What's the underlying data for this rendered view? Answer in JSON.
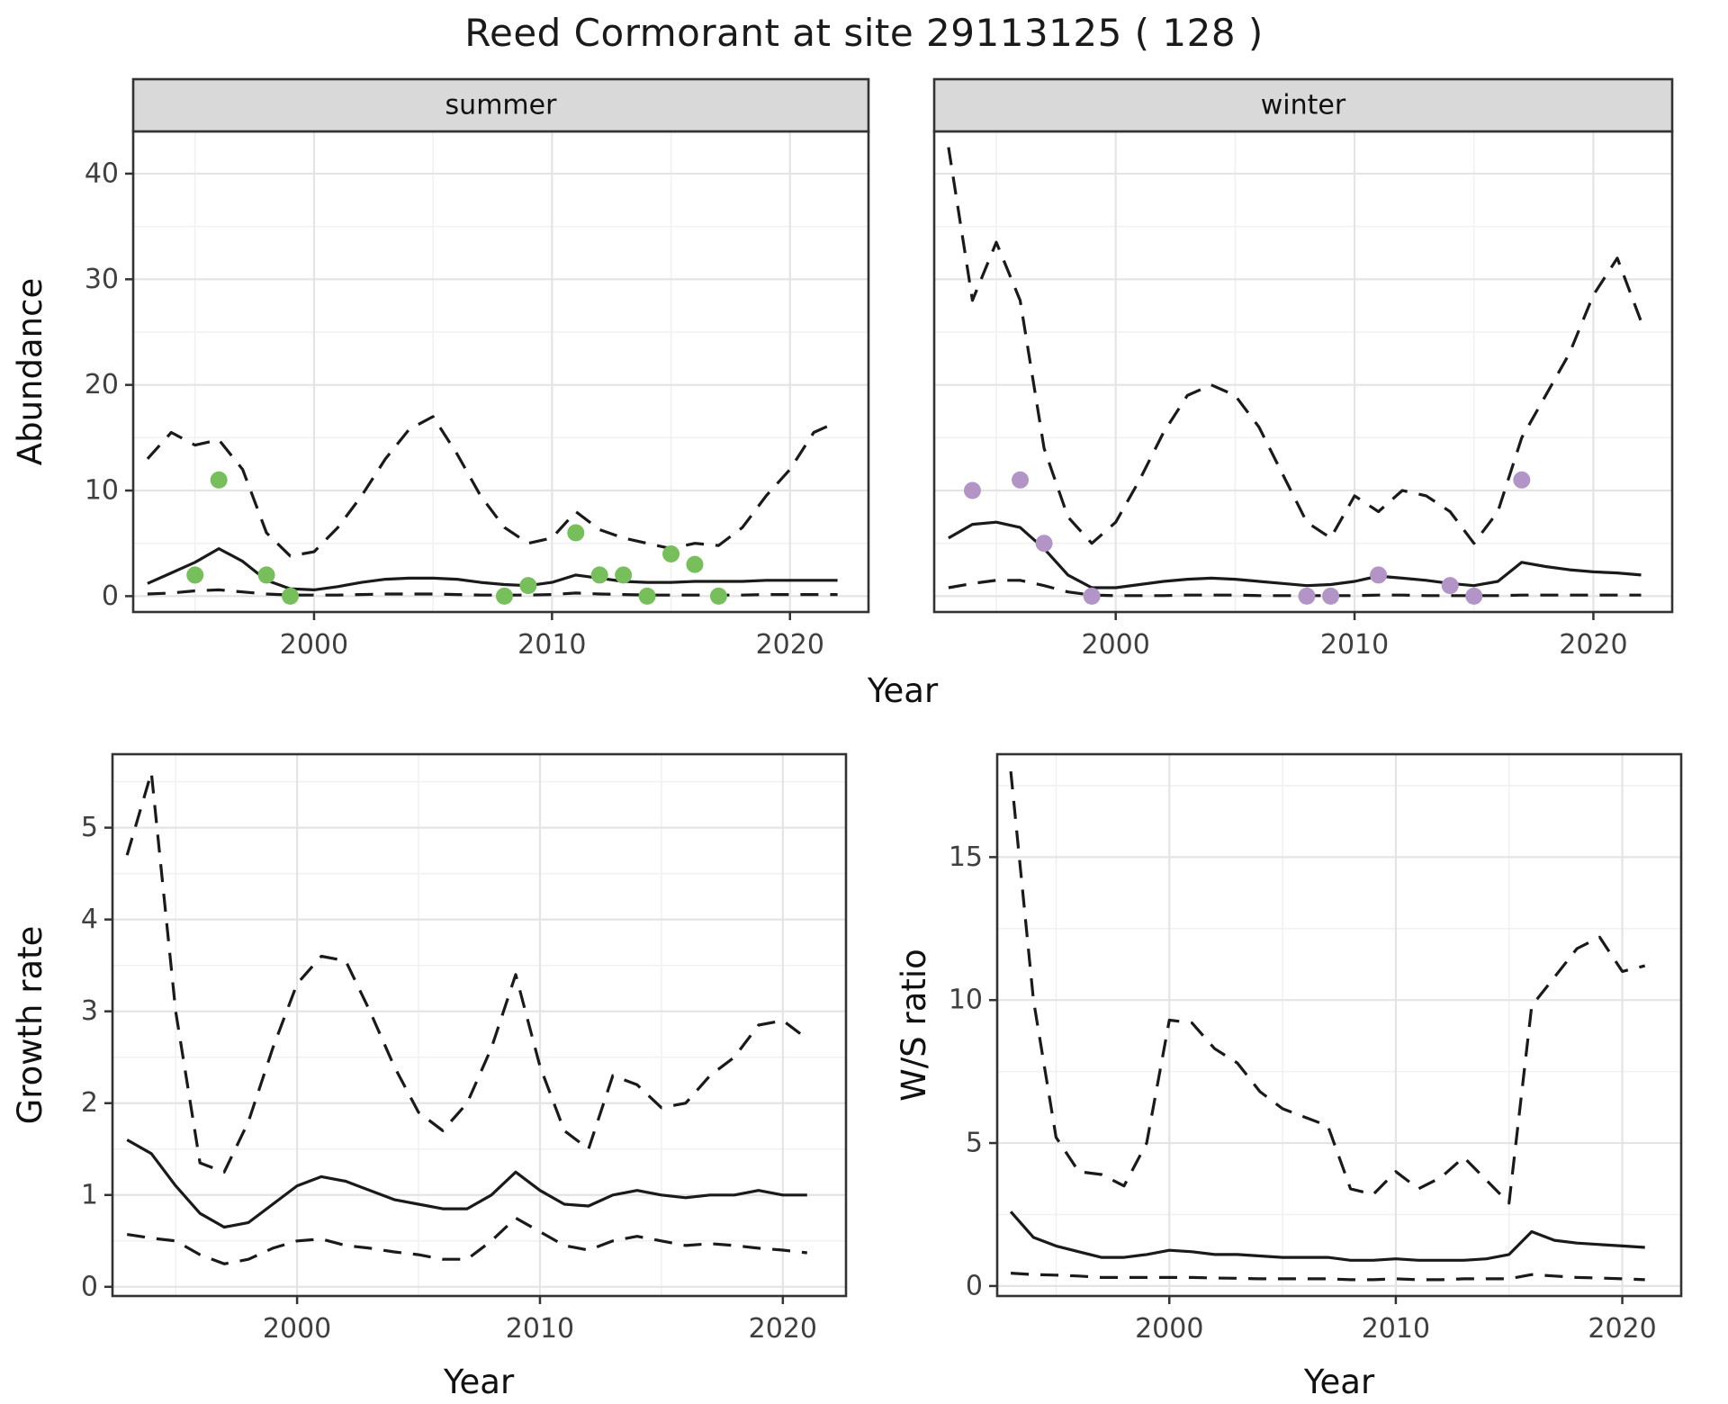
{
  "title": "Reed Cormorant at site 29113125 ( 128 )",
  "colors": {
    "summer_points": "#76bf5b",
    "winter_points": "#b294c7",
    "line": "#1a1a1a",
    "strip_fill": "#d9d9d9",
    "strip_border": "#333333",
    "panel_border": "#333333",
    "grid_major": "#e4e4e4",
    "grid_minor": "#f1f1f1",
    "tick_text": "#404040",
    "axis_title": "#111111"
  },
  "chart_data": [
    {
      "type": "line",
      "id": "abundance-summer",
      "strip_label": "summer",
      "xlabel": "Year",
      "ylabel": "Abundance",
      "xlim": [
        1992.4,
        2023.3
      ],
      "ylim": [
        -1.5,
        44
      ],
      "xticks": [
        2000,
        2010,
        2020
      ],
      "xticks_minor": [
        1995,
        2005,
        2015
      ],
      "yticks": [
        0,
        10,
        20,
        30,
        40
      ],
      "yticks_minor": [
        5,
        15,
        25,
        35
      ],
      "x": [
        1993,
        1994,
        1995,
        1996,
        1997,
        1998,
        1999,
        2000,
        2001,
        2002,
        2003,
        2004,
        2005,
        2006,
        2007,
        2008,
        2009,
        2010,
        2011,
        2012,
        2013,
        2014,
        2015,
        2016,
        2017,
        2018,
        2019,
        2020,
        2021,
        2022
      ],
      "series": [
        {
          "name": "upper-ci",
          "style": "dashed",
          "values": [
            13,
            15.5,
            14.3,
            14.8,
            12,
            6,
            3.8,
            4.2,
            6.5,
            9.5,
            13,
            15.8,
            17,
            13.5,
            9.5,
            6.5,
            5,
            5.5,
            8,
            6.3,
            5.5,
            5,
            4.5,
            5,
            4.8,
            6.5,
            9.5,
            12,
            15.5,
            16.5
          ]
        },
        {
          "name": "lower-ci",
          "style": "dashed",
          "values": [
            0.2,
            0.3,
            0.5,
            0.6,
            0.4,
            0.2,
            0.1,
            0.1,
            0.1,
            0.15,
            0.2,
            0.2,
            0.2,
            0.15,
            0.1,
            0.1,
            0.1,
            0.15,
            0.3,
            0.2,
            0.15,
            0.1,
            0.1,
            0.1,
            0.1,
            0.1,
            0.15,
            0.15,
            0.15,
            0.15
          ]
        },
        {
          "name": "estimate",
          "style": "solid",
          "values": [
            1.2,
            2.2,
            3.2,
            4.5,
            3.3,
            1.5,
            0.7,
            0.6,
            0.9,
            1.3,
            1.6,
            1.7,
            1.7,
            1.6,
            1.3,
            1.1,
            1.0,
            1.3,
            2.0,
            1.7,
            1.4,
            1.3,
            1.3,
            1.4,
            1.4,
            1.4,
            1.5,
            1.5,
            1.5,
            1.5
          ]
        }
      ],
      "observations": {
        "color_key": "summer_points",
        "x": [
          1995,
          1996,
          1998,
          1999,
          2008,
          2009,
          2011,
          2012,
          2013,
          2014,
          2015,
          2016,
          2017
        ],
        "y": [
          2,
          11,
          2,
          0,
          0,
          1,
          6,
          2,
          2,
          0,
          4,
          3,
          0
        ]
      }
    },
    {
      "type": "line",
      "id": "abundance-winter",
      "strip_label": "winter",
      "xlabel": "Year",
      "ylabel": null,
      "xlim": [
        1992.4,
        2023.3
      ],
      "ylim": [
        -1.5,
        44
      ],
      "xticks": [
        2000,
        2010,
        2020
      ],
      "xticks_minor": [
        1995,
        2005,
        2015
      ],
      "yticks": [
        0,
        10,
        20,
        30,
        40
      ],
      "yticks_minor": [
        5,
        15,
        25,
        35
      ],
      "x": [
        1993,
        1994,
        1995,
        1996,
        1997,
        1998,
        1999,
        2000,
        2001,
        2002,
        2003,
        2004,
        2005,
        2006,
        2007,
        2008,
        2009,
        2010,
        2011,
        2012,
        2013,
        2014,
        2015,
        2016,
        2017,
        2018,
        2019,
        2020,
        2021,
        2022
      ],
      "series": [
        {
          "name": "upper-ci",
          "style": "dashed",
          "values": [
            42.5,
            28,
            33.5,
            28,
            14,
            7.5,
            5,
            7,
            11,
            15.5,
            19,
            20,
            19,
            16,
            11.5,
            7,
            5.5,
            9.5,
            8,
            10,
            9.5,
            8,
            5,
            8,
            15,
            19,
            23,
            28.5,
            32,
            26
          ]
        },
        {
          "name": "lower-ci",
          "style": "dashed",
          "values": [
            0.8,
            1.2,
            1.5,
            1.5,
            1.0,
            0.4,
            0.1,
            0.05,
            0.05,
            0.05,
            0.1,
            0.1,
            0.1,
            0.05,
            0.05,
            0.05,
            0.05,
            0.05,
            0.1,
            0.1,
            0.05,
            0.05,
            0.05,
            0.05,
            0.1,
            0.1,
            0.1,
            0.1,
            0.1,
            0.1
          ]
        },
        {
          "name": "estimate",
          "style": "solid",
          "values": [
            5.5,
            6.8,
            7.0,
            6.5,
            4.5,
            2.0,
            0.8,
            0.8,
            1.1,
            1.4,
            1.6,
            1.7,
            1.6,
            1.4,
            1.2,
            1.0,
            1.1,
            1.4,
            1.9,
            1.7,
            1.5,
            1.2,
            1.0,
            1.4,
            3.2,
            2.8,
            2.5,
            2.3,
            2.2,
            2.0
          ]
        }
      ],
      "observations": {
        "color_key": "winter_points",
        "x": [
          1994,
          1996,
          1997,
          1999,
          2008,
          2009,
          2011,
          2014,
          2015,
          2017
        ],
        "y": [
          10,
          11,
          5,
          0,
          0,
          0,
          2,
          1,
          0,
          11
        ]
      }
    },
    {
      "type": "line",
      "id": "growth-rate",
      "strip_label": null,
      "xlabel": "Year",
      "ylabel": "Growth rate",
      "xlim": [
        1992.4,
        2022.6
      ],
      "ylim": [
        -0.1,
        5.8
      ],
      "xticks": [
        2000,
        2010,
        2020
      ],
      "xticks_minor": [
        1995,
        2005,
        2015
      ],
      "yticks": [
        0,
        1,
        2,
        3,
        4,
        5
      ],
      "yticks_minor": [
        0.5,
        1.5,
        2.5,
        3.5,
        4.5,
        5.5
      ],
      "x": [
        1993,
        1994,
        1995,
        1996,
        1997,
        1998,
        1999,
        2000,
        2001,
        2002,
        2003,
        2004,
        2005,
        2006,
        2007,
        2008,
        2009,
        2010,
        2011,
        2012,
        2013,
        2014,
        2015,
        2016,
        2017,
        2018,
        2019,
        2020,
        2021
      ],
      "series": [
        {
          "name": "upper-ci",
          "style": "dashed",
          "values": [
            4.7,
            5.6,
            3.0,
            1.35,
            1.25,
            1.8,
            2.6,
            3.3,
            3.6,
            3.55,
            3.0,
            2.4,
            1.9,
            1.7,
            2.0,
            2.6,
            3.4,
            2.4,
            1.7,
            1.5,
            2.3,
            2.2,
            1.95,
            2.0,
            2.3,
            2.5,
            2.85,
            2.9,
            2.7
          ]
        },
        {
          "name": "lower-ci",
          "style": "dashed",
          "values": [
            0.57,
            0.53,
            0.5,
            0.35,
            0.25,
            0.3,
            0.42,
            0.5,
            0.52,
            0.45,
            0.42,
            0.38,
            0.35,
            0.3,
            0.3,
            0.5,
            0.75,
            0.6,
            0.45,
            0.4,
            0.5,
            0.55,
            0.5,
            0.45,
            0.47,
            0.45,
            0.42,
            0.4,
            0.37
          ]
        },
        {
          "name": "estimate",
          "style": "solid",
          "values": [
            1.6,
            1.45,
            1.1,
            0.8,
            0.65,
            0.7,
            0.9,
            1.1,
            1.2,
            1.15,
            1.05,
            0.95,
            0.9,
            0.85,
            0.85,
            1.0,
            1.25,
            1.05,
            0.9,
            0.88,
            1.0,
            1.05,
            1.0,
            0.97,
            1.0,
            1.0,
            1.05,
            1.0,
            1.0
          ]
        }
      ],
      "observations": null
    },
    {
      "type": "line",
      "id": "ws-ratio",
      "strip_label": null,
      "xlabel": "Year",
      "ylabel": "W/S ratio",
      "xlim": [
        1992.4,
        2022.6
      ],
      "ylim": [
        -0.35,
        18.6
      ],
      "xticks": [
        2000,
        2010,
        2020
      ],
      "xticks_minor": [
        1995,
        2005,
        2015
      ],
      "yticks": [
        0,
        5,
        10,
        15
      ],
      "yticks_minor": [
        2.5,
        7.5,
        12.5,
        17.5
      ],
      "x": [
        1993,
        1994,
        1995,
        1996,
        1997,
        1998,
        1999,
        2000,
        2001,
        2002,
        2003,
        2004,
        2005,
        2006,
        2007,
        2008,
        2009,
        2010,
        2011,
        2012,
        2013,
        2014,
        2015,
        2016,
        2017,
        2018,
        2019,
        2020,
        2021
      ],
      "series": [
        {
          "name": "upper-ci",
          "style": "dashed",
          "values": [
            18,
            10,
            5.2,
            4.0,
            3.9,
            3.5,
            5.0,
            9.3,
            9.2,
            8.3,
            7.8,
            6.8,
            6.2,
            5.9,
            5.6,
            3.4,
            3.2,
            4.0,
            3.4,
            3.8,
            4.5,
            3.7,
            2.9,
            9.8,
            10.8,
            11.8,
            12.2,
            11.0,
            11.2
          ]
        },
        {
          "name": "lower-ci",
          "style": "dashed",
          "values": [
            0.45,
            0.4,
            0.38,
            0.35,
            0.3,
            0.3,
            0.3,
            0.3,
            0.3,
            0.28,
            0.27,
            0.25,
            0.25,
            0.25,
            0.25,
            0.22,
            0.22,
            0.25,
            0.22,
            0.22,
            0.25,
            0.25,
            0.25,
            0.4,
            0.35,
            0.3,
            0.28,
            0.25,
            0.22
          ]
        },
        {
          "name": "estimate",
          "style": "solid",
          "values": [
            2.6,
            1.7,
            1.4,
            1.2,
            1.0,
            1.0,
            1.1,
            1.25,
            1.2,
            1.1,
            1.1,
            1.05,
            1.0,
            1.0,
            1.0,
            0.9,
            0.9,
            0.95,
            0.9,
            0.9,
            0.9,
            0.95,
            1.1,
            1.9,
            1.6,
            1.5,
            1.45,
            1.4,
            1.35
          ]
        }
      ],
      "observations": null
    }
  ]
}
